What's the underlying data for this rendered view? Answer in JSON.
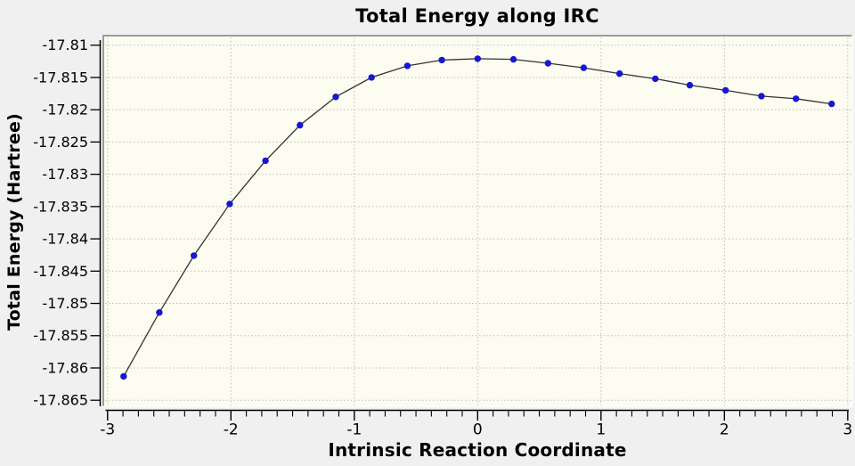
{
  "chart_data": {
    "type": "line",
    "title": "Total Energy along IRC",
    "xlabel": "Intrinsic Reaction Coordinate",
    "ylabel": "Total Energy (Hartree)",
    "series": [
      {
        "name": "Total Energy",
        "x": [
          -2.87,
          -2.58,
          -2.3,
          -2.01,
          -1.72,
          -1.44,
          -1.15,
          -0.86,
          -0.57,
          -0.29,
          0.0,
          0.29,
          0.57,
          0.86,
          1.15,
          1.44,
          1.72,
          2.01,
          2.3,
          2.58,
          2.87
        ],
        "y": [
          -17.8613,
          -17.8514,
          -17.8426,
          -17.8346,
          -17.8279,
          -17.8224,
          -17.818,
          -17.815,
          -17.8132,
          -17.8123,
          -17.8121,
          -17.8122,
          -17.8128,
          -17.8135,
          -17.8144,
          -17.8152,
          -17.8162,
          -17.817,
          -17.8179,
          -17.8183,
          -17.8191
        ]
      }
    ],
    "xlim": [
      -3.02,
      3.03
    ],
    "ylim": [
      -17.8658,
      -17.8088
    ],
    "x_ticks": {
      "values": [
        -3,
        -2,
        -1,
        0,
        1,
        2,
        3
      ],
      "labels": [
        "-3",
        "-2",
        "-1",
        "0",
        "1",
        "2",
        "3"
      ]
    },
    "y_ticks": {
      "values": [
        -17.81,
        -17.815,
        -17.82,
        -17.825,
        -17.83,
        -17.835,
        -17.84,
        -17.845,
        -17.85,
        -17.855,
        -17.86,
        -17.865
      ],
      "labels": [
        "-17.81",
        "-17.815",
        "-17.82",
        "-17.825",
        "-17.83",
        "-17.835",
        "-17.84",
        "-17.845",
        "-17.85",
        "-17.855",
        "-17.86",
        "-17.865"
      ]
    },
    "x_minor_tick_step": 0.125,
    "grid": {
      "on": true,
      "style": "dotted"
    },
    "legend": {
      "visible": false
    },
    "marker": {
      "shape": "circle",
      "color": "#1717d2"
    }
  },
  "colors": {
    "window_background": "#f0f0f0",
    "plot_background": "#fdfcf0",
    "gridline": "#bdbdb4",
    "frame_dark": "#9c9c9c",
    "frame_light": "#fafafa",
    "axis_line": "#000000",
    "series_line": "#333333",
    "marker_fill": "#1717d2",
    "tick_text": "#000000"
  }
}
